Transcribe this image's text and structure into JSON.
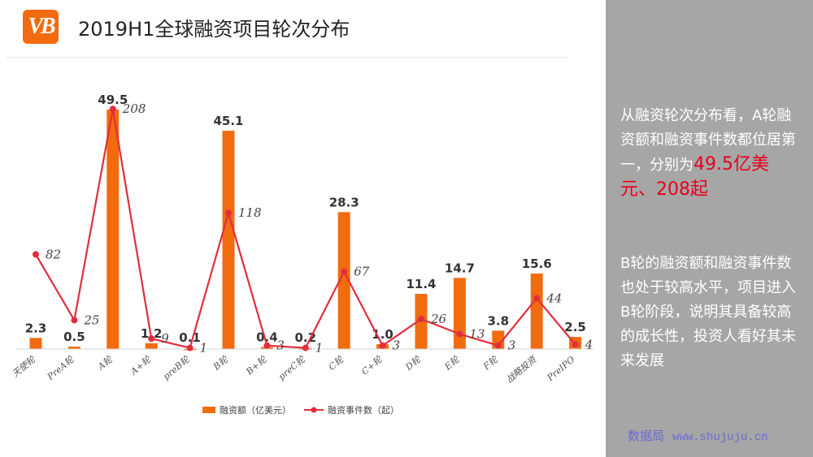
{
  "header": {
    "logo_text": "VB",
    "title": "2019H1全球融资项目轮次分布"
  },
  "colors": {
    "bar": "#f26b0f",
    "line": "#e02f3c",
    "logo": "#f26b0f",
    "sidebar": "#a6a6a6",
    "highlight": "#e8001c"
  },
  "chart_data": {
    "type": "bar",
    "title": "2019H1全球融资项目轮次分布",
    "categories": [
      "天使轮",
      "PreA轮",
      "A轮",
      "A+轮",
      "preB轮",
      "B轮",
      "B+轮",
      "preC轮",
      "C轮",
      "C+轮",
      "D轮",
      "E轮",
      "F轮",
      "战略投资",
      "PreIPO"
    ],
    "series": [
      {
        "name": "融资额（亿美元）",
        "type": "bar",
        "values": [
          2.3,
          0.5,
          49.5,
          1.2,
          0.1,
          45.1,
          0.4,
          0.2,
          28.3,
          1.0,
          11.4,
          14.7,
          3.8,
          15.6,
          2.5
        ],
        "labels": [
          "2.3",
          "0.5",
          "49.5",
          "1.2",
          "0.1",
          "45.1",
          "0.4",
          "0.2",
          "28.3",
          "1.0",
          "11.4",
          "14.7",
          "3.8",
          "15.6",
          "2.5"
        ]
      },
      {
        "name": "融资事件数（起）",
        "type": "line",
        "values": [
          82,
          25,
          208,
          9,
          1,
          118,
          3,
          1,
          67,
          3,
          26,
          13,
          3,
          44,
          4
        ],
        "labels": [
          "82",
          "25",
          "208",
          "9",
          "1",
          "118",
          "3",
          "1",
          "67",
          "3",
          "26",
          "13",
          "3",
          "44",
          "4"
        ]
      }
    ],
    "y_primary_range": [
      0,
      52
    ],
    "y_secondary_range": [
      0,
      218
    ],
    "legend": "bottom-center",
    "grid": false
  },
  "sidebar": {
    "p1_text": "从融资轮次分布看，A轮融资额和融资事件数都位居第一，分别为",
    "p1_highlight1": "49.5亿美元",
    "p1_sep": "、",
    "p1_highlight2": "208起",
    "p2_text": "B轮的融资额和融资事件数也处于较高水平，项目进入B轮阶段，说明其具备较高的成长性，投资人看好其未来发展"
  },
  "watermark": {
    "name": "数据局",
    "url": "www.shujuju.cn"
  }
}
